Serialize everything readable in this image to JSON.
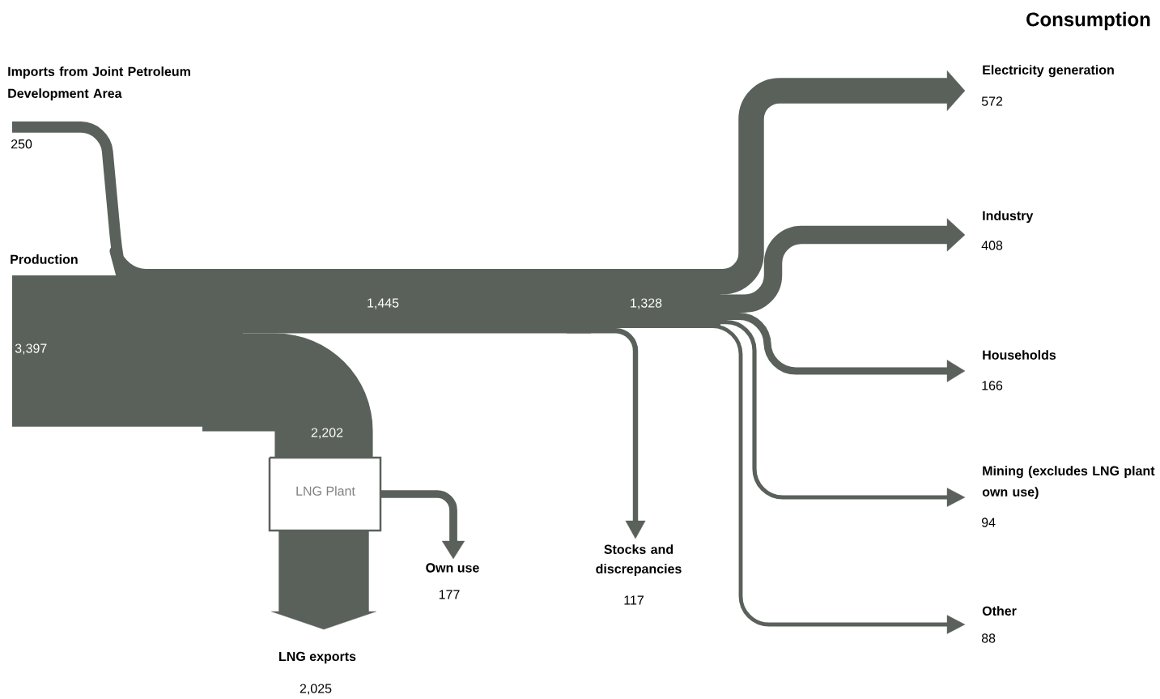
{
  "chart_data": {
    "type": "other",
    "title": "Consumption",
    "color": "#5a615b",
    "categories": [
      "Imports from Joint Petroleum Development Area",
      "Production",
      "LNG exports",
      "Own use",
      "Stocks and discrepancies",
      "Electricity generation",
      "Industry",
      "Households",
      "Mining (excludes LNG plant own use)",
      "Other"
    ],
    "values": [
      250,
      3397,
      2025,
      177,
      117,
      572,
      408,
      166,
      94,
      88
    ],
    "value_labels": [
      "250",
      "3,397",
      "2,025",
      "177",
      "117",
      "572",
      "408",
      "166",
      "94",
      "88"
    ],
    "annotations": [
      "LNG Plant",
      "1,445",
      "1,328",
      "2,202"
    ]
  }
}
